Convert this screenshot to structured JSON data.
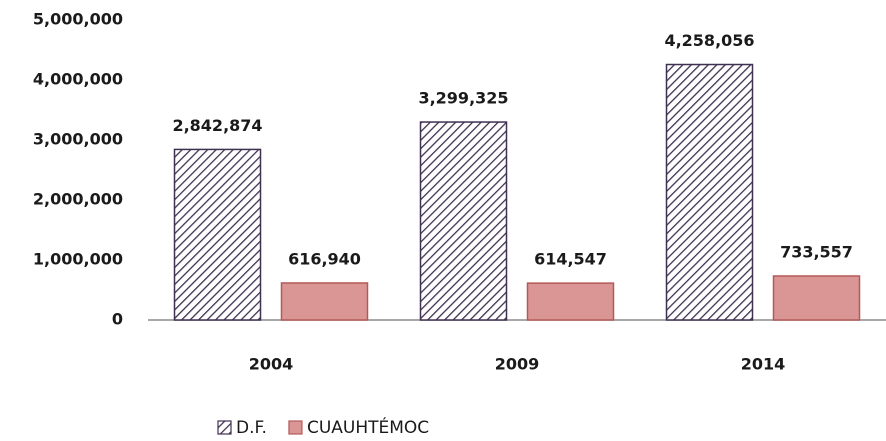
{
  "chart_data": {
    "type": "bar",
    "categories": [
      "2004",
      "2009",
      "2014"
    ],
    "series": [
      {
        "name": "D.F.",
        "color": "#3f3151",
        "hatch": true,
        "values": [
          2842874,
          3299325,
          4258056
        ],
        "value_labels": [
          "2,842,874",
          "3,299,325",
          "4,258,056"
        ]
      },
      {
        "name": "CUAUHTÉMOC",
        "color": "#d99694",
        "values": [
          616940,
          614547,
          733557
        ],
        "value_labels": [
          "616,940",
          "614,547",
          "733,557"
        ]
      }
    ],
    "ylim": [
      0,
      5000000
    ],
    "yticks": [
      0,
      {
        "value": 1000000,
        "label": "1,000,000"
      },
      {
        "value": 2000000,
        "label": "2,000,000"
      },
      {
        "value": 3000000,
        "label": "3,000,000"
      },
      {
        "value": 4000000,
        "label": "4,000,000"
      },
      {
        "value": 5000000,
        "label": "5,000,000"
      }
    ],
    "grid": false,
    "legend": "bottom"
  }
}
